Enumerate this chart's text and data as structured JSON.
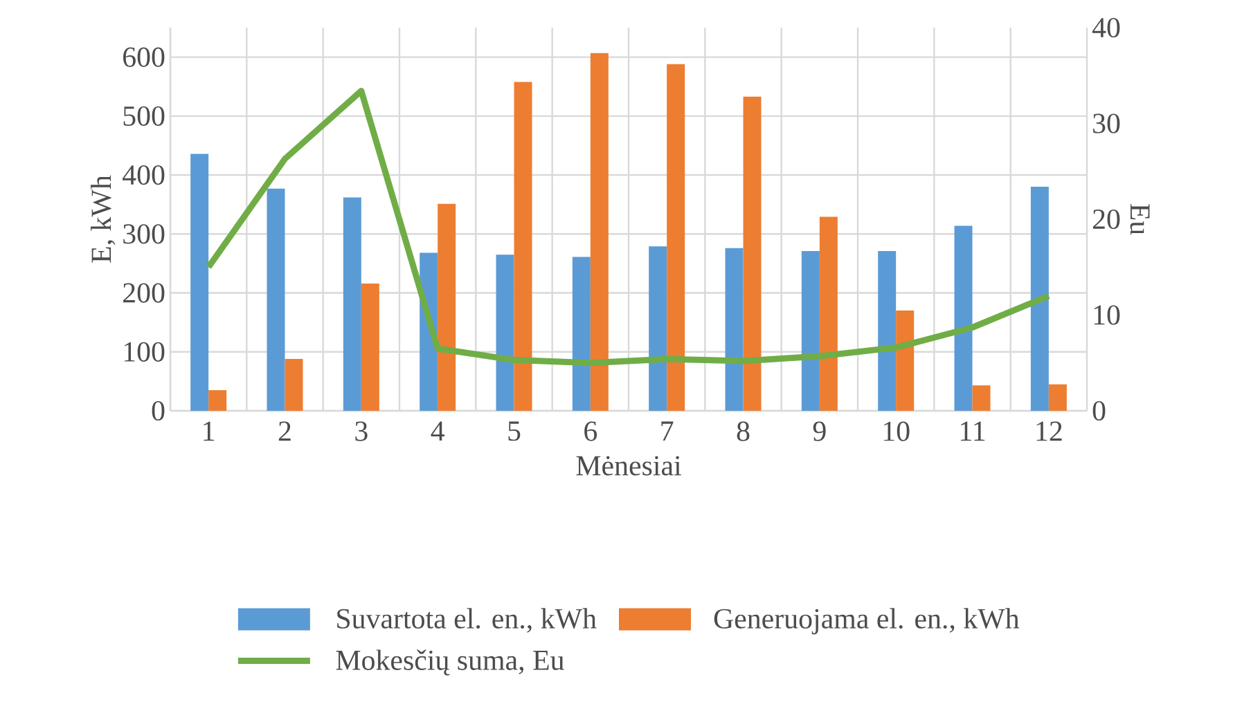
{
  "chart_data": {
    "type": "bar",
    "xlabel": "Mėnesiai",
    "ylabel": "E, kWh",
    "y2label": "Eu",
    "categories": [
      "1",
      "2",
      "3",
      "4",
      "5",
      "6",
      "7",
      "8",
      "9",
      "10",
      "11",
      "12"
    ],
    "series": [
      {
        "name": "Suvartota el. en., kWh",
        "color": "#5b9bd5",
        "values": [
          436,
          377,
          362,
          268,
          265,
          261,
          279,
          276,
          271,
          271,
          314,
          380
        ]
      },
      {
        "name": "Generuojama el. en., kWh",
        "color": "#ed7d31",
        "values": [
          35,
          88,
          216,
          351,
          558,
          607,
          588,
          533,
          329,
          170,
          43,
          45
        ]
      },
      {
        "name": "Mokesčių suma, Eu",
        "color": "#70ad47",
        "type": "line",
        "axis": "y2",
        "values": [
          15.0,
          26.3,
          33.4,
          6.5,
          5.3,
          5.0,
          5.4,
          5.2,
          5.7,
          6.6,
          8.7,
          12.0
        ]
      }
    ],
    "ylim": [
      0,
      650
    ],
    "yticks": [
      0,
      100,
      200,
      300,
      400,
      500,
      600
    ],
    "y2lim": [
      0,
      40
    ],
    "y2ticks": [
      0,
      10,
      20,
      30,
      40
    ],
    "grid": true,
    "legend": "bottom",
    "marker": "none"
  }
}
